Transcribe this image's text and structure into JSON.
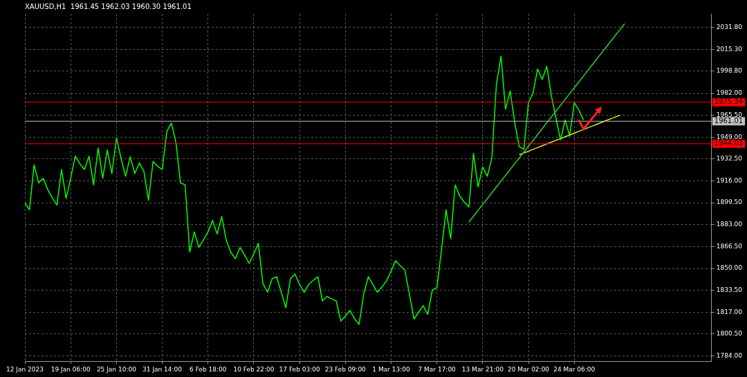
{
  "chart_data": {
    "type": "line",
    "title": "XAUUSD,H1  1961.45 1962.03 1960.30 1961.01",
    "categories": [
      "12 Jan 2023",
      null,
      null,
      null,
      null,
      null,
      null,
      null,
      null,
      null,
      "19 Jan 06:00",
      null,
      null,
      null,
      null,
      null,
      null,
      null,
      null,
      null,
      "25 Jan 10:00",
      null,
      null,
      null,
      null,
      null,
      null,
      null,
      null,
      null,
      "31 Jan 14:00",
      null,
      null,
      null,
      null,
      null,
      null,
      null,
      null,
      null,
      "6 Feb 18:00",
      null,
      null,
      null,
      null,
      null,
      null,
      null,
      null,
      null,
      "10 Feb 22:00",
      null,
      null,
      null,
      null,
      null,
      null,
      null,
      null,
      null,
      "17 Feb 03:00",
      null,
      null,
      null,
      null,
      null,
      null,
      null,
      null,
      null,
      "23 Feb 09:00",
      null,
      null,
      null,
      null,
      null,
      null,
      null,
      null,
      null,
      "1 Mar 13:00",
      null,
      null,
      null,
      null,
      null,
      null,
      null,
      null,
      null,
      "7 Mar 17:00",
      null,
      null,
      null,
      null,
      null,
      null,
      null,
      null,
      null,
      "13 Mar 21:00",
      null,
      null,
      null,
      null,
      null,
      null,
      null,
      null,
      null,
      "20 Mar 02:00",
      null,
      null,
      null,
      null,
      null,
      null,
      null,
      null,
      null,
      "24 Mar 06:00",
      null,
      null,
      null,
      null,
      null,
      null,
      null,
      null,
      null,
      null,
      null,
      null,
      null,
      null,
      null,
      null,
      null,
      null,
      null,
      null,
      null,
      null,
      null,
      null,
      null,
      null,
      null,
      null,
      null,
      null
    ],
    "ylim": [
      1780,
      2042
    ],
    "yticks": [
      {
        "value": 1784,
        "label": "1784.00"
      },
      {
        "value": 1800.5,
        "label": "1800.50"
      },
      {
        "value": 1817,
        "label": "1817.00"
      },
      {
        "value": 1833.5,
        "label": "1833.50"
      },
      {
        "value": 1850,
        "label": "1850.00"
      },
      {
        "value": 1866.5,
        "label": "1866.50"
      },
      {
        "value": 1883,
        "label": "1883.00"
      },
      {
        "value": 1899.5,
        "label": "1899.50"
      },
      {
        "value": 1916,
        "label": "1916.00"
      },
      {
        "value": 1932.5,
        "label": "1932.50"
      },
      {
        "value": 1949,
        "label": "1949.00"
      },
      {
        "value": 1965.5,
        "label": "1965.50"
      },
      {
        "value": 1982,
        "label": "1982.00"
      },
      {
        "value": 1998.8,
        "label": "1998.80"
      },
      {
        "value": 2015.3,
        "label": "2015.30"
      },
      {
        "value": 2031.8,
        "label": "2031.80"
      }
    ],
    "grid": true,
    "legend": false,
    "marker": "none",
    "line_style": "solid",
    "series": [
      {
        "color": "#00ff00",
        "values": [
          1899.3,
          1894.2,
          1928.1,
          1914.5,
          1918.0,
          1909.4,
          1903.0,
          1897.8,
          1924.6,
          1902.8,
          1918.0,
          1934.7,
          1929.0,
          1924.6,
          1934.7,
          1913.0,
          1940.8,
          1918.0,
          1939.3,
          1921.6,
          1948.4,
          1933.2,
          1919.5,
          1934.2,
          1921.6,
          1929.6,
          1923.1,
          1901.3,
          1930.7,
          1927.0,
          1924.6,
          1953.4,
          1959.5,
          1944.8,
          1914.5,
          1913.0,
          1862.4,
          1877.6,
          1865.9,
          1871.5,
          1877.6,
          1886.2,
          1876.0,
          1889.2,
          1871.0,
          1862.0,
          1857.3,
          1865.9,
          1860.0,
          1853.8,
          1861.0,
          1869.0,
          1838.6,
          1832.0,
          1842.2,
          1843.7,
          1832.0,
          1820.4,
          1842.2,
          1845.7,
          1838.0,
          1832.0,
          1838.0,
          1841.0,
          1843.7,
          1825.5,
          1829.0,
          1827.0,
          1825.5,
          1810.3,
          1814.0,
          1818.4,
          1812.0,
          1807.8,
          1830.5,
          1843.7,
          1838.0,
          1832.0,
          1836.0,
          1840.6,
          1848.0,
          1855.8,
          1852.0,
          1848.7,
          1830.5,
          1811.8,
          1817.0,
          1821.9,
          1815.4,
          1833.6,
          1835.6,
          1863.9,
          1894.2,
          1872.5,
          1913.0,
          1904.4,
          1900.0,
          1896.3,
          1936.7,
          1911.4,
          1926.6,
          1919.5,
          1933.2,
          1988.8,
          2010.1,
          1970.1,
          1983.8,
          1960.0,
          1941.8,
          1939.8,
          1975.2,
          1982.2,
          2000.4,
          1992.4,
          2002.5,
          1980.2,
          1963.5,
          1946.8,
          1962.0,
          1949.9,
          1975.2,
          1969.6,
          1962.0,
          null,
          null,
          null,
          null,
          null,
          null,
          null,
          null,
          null,
          null,
          null,
          null,
          null,
          null,
          null,
          null,
          null,
          null,
          null,
          null,
          null,
          null,
          null,
          null,
          null,
          null,
          null,
          null
        ]
      },
      {
        "color": "#32cd32",
        "values": [
          null,
          null,
          null,
          null,
          null,
          null,
          null,
          null,
          null,
          null,
          null,
          null,
          null,
          null,
          null,
          null,
          null,
          null,
          null,
          null,
          null,
          null,
          null,
          null,
          null,
          null,
          null,
          null,
          null,
          null,
          null,
          null,
          null,
          null,
          null,
          null,
          null,
          null,
          null,
          null,
          null,
          null,
          null,
          null,
          null,
          null,
          null,
          null,
          null,
          null,
          null,
          null,
          null,
          null,
          null,
          null,
          null,
          null,
          null,
          null,
          null,
          null,
          null,
          null,
          null,
          null,
          null,
          null,
          null,
          null,
          null,
          null,
          null,
          null,
          null,
          null,
          null,
          null,
          null,
          null,
          null,
          null,
          null,
          null,
          null,
          null,
          null,
          null,
          null,
          null,
          null,
          null,
          null,
          null,
          null,
          null,
          null,
          1885.0,
          1889.4,
          1893.8,
          1898.2,
          1902.6,
          1907.0,
          1911.4,
          1915.8,
          1920.2,
          1924.6,
          1929.0,
          1933.4,
          1937.8,
          1942.2,
          1946.6,
          1951.0,
          1955.4,
          1959.8,
          1964.2,
          1968.6,
          1973.0,
          1977.4,
          1981.8,
          1986.2,
          1990.6,
          1995.0,
          1999.4,
          2003.8,
          2008.2,
          2012.6,
          2017.0,
          2021.4,
          2025.8,
          2030.2,
          2034.6,
          null,
          null,
          null,
          null,
          null,
          null,
          null,
          null,
          null,
          null,
          null,
          null,
          null,
          null,
          null,
          null,
          null,
          null,
          null
        ]
      },
      {
        "color": "#e6e632",
        "values": [
          null,
          null,
          null,
          null,
          null,
          null,
          null,
          null,
          null,
          null,
          null,
          null,
          null,
          null,
          null,
          null,
          null,
          null,
          null,
          null,
          null,
          null,
          null,
          null,
          null,
          null,
          null,
          null,
          null,
          null,
          null,
          null,
          null,
          null,
          null,
          null,
          null,
          null,
          null,
          null,
          null,
          null,
          null,
          null,
          null,
          null,
          null,
          null,
          null,
          null,
          null,
          null,
          null,
          null,
          null,
          null,
          null,
          null,
          null,
          null,
          null,
          null,
          null,
          null,
          null,
          null,
          null,
          null,
          null,
          null,
          null,
          null,
          null,
          null,
          null,
          null,
          null,
          null,
          null,
          null,
          null,
          null,
          null,
          null,
          null,
          null,
          null,
          null,
          null,
          null,
          null,
          null,
          null,
          null,
          null,
          null,
          null,
          null,
          null,
          null,
          null,
          null,
          null,
          null,
          null,
          null,
          null,
          null,
          1935.7,
          1937.1,
          1938.4,
          1939.8,
          1941.1,
          1942.5,
          1943.9,
          1945.2,
          1946.6,
          1947.9,
          1949.3,
          1950.6,
          1952.0,
          1953.4,
          1954.7,
          1956.1,
          1957.4,
          1958.8,
          1960.2,
          1961.5,
          1962.9,
          1964.2,
          1965.6,
          null,
          null,
          null,
          null,
          null,
          null,
          null,
          null,
          null,
          null,
          null,
          null,
          null,
          null,
          null,
          null,
          null,
          null,
          null,
          null
        ]
      }
    ],
    "ref_lines": [
      {
        "axis": "y",
        "value": 1975.34,
        "label": "1975.34",
        "color": "#ff0000"
      },
      {
        "axis": "y",
        "value": 1961.01,
        "label": "1961.01",
        "color": "#c0c0c0"
      },
      {
        "axis": "y",
        "value": 1944.02,
        "label": "1944.02",
        "color": "#ff0000"
      }
    ]
  }
}
